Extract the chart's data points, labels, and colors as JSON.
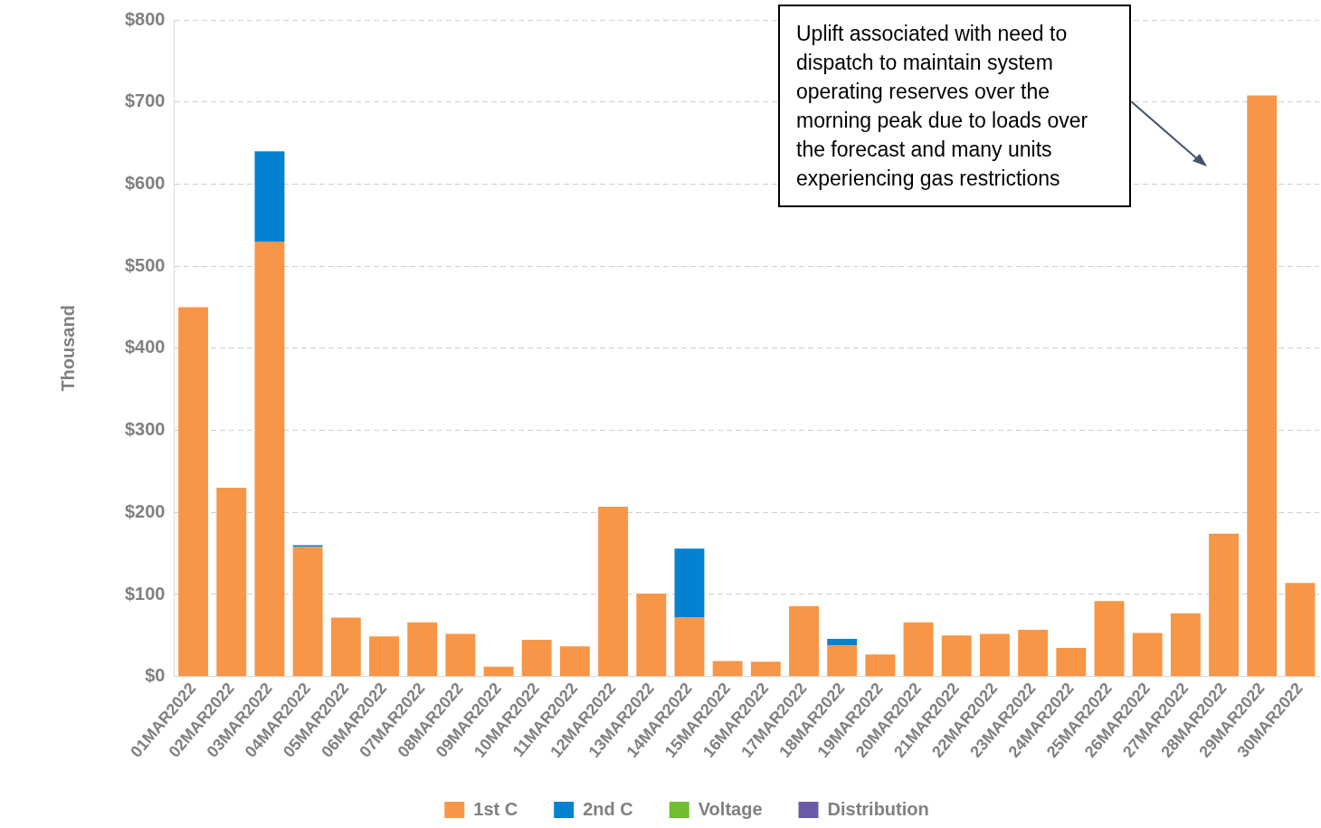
{
  "chart_data": {
    "type": "bar",
    "stacked": true,
    "ylabel": "Thousand",
    "categories": [
      "01MAR2022",
      "02MAR2022",
      "03MAR2022",
      "04MAR2022",
      "05MAR2022",
      "06MAR2022",
      "07MAR2022",
      "08MAR2022",
      "09MAR2022",
      "10MAR2022",
      "11MAR2022",
      "12MAR2022",
      "13MAR2022",
      "14MAR2022",
      "15MAR2022",
      "16MAR2022",
      "17MAR2022",
      "18MAR2022",
      "19MAR2022",
      "20MAR2022",
      "21MAR2022",
      "22MAR2022",
      "23MAR2022",
      "24MAR2022",
      "25MAR2022",
      "26MAR2022",
      "27MAR2022",
      "28MAR2022",
      "29MAR2022",
      "30MAR2022"
    ],
    "series": [
      {
        "name": "1st C",
        "color": "#f79646",
        "values": [
          450,
          230,
          530,
          158,
          72,
          49,
          66,
          52,
          12,
          45,
          37,
          207,
          101,
          72,
          19,
          18,
          86,
          38,
          27,
          66,
          50,
          52,
          57,
          35,
          92,
          53,
          77,
          174,
          708,
          114
        ]
      },
      {
        "name": "2nd C",
        "color": "#0481d1",
        "values": [
          0,
          0,
          110,
          2,
          0,
          0,
          0,
          0,
          0,
          0,
          0,
          0,
          0,
          84,
          0,
          0,
          0,
          8,
          0,
          0,
          0,
          0,
          0,
          0,
          0,
          0,
          0,
          0,
          0,
          0
        ]
      },
      {
        "name": "Voltage",
        "color": "#70bf32",
        "values": [
          0,
          0,
          0,
          0,
          0,
          0,
          0,
          0,
          0,
          0,
          0,
          0,
          0,
          0,
          0,
          0,
          0,
          0,
          0,
          0,
          0,
          0,
          0,
          0,
          0,
          0,
          0,
          0,
          0,
          0
        ]
      },
      {
        "name": "Distribution",
        "color": "#6a5aa8",
        "values": [
          0,
          0,
          0,
          0,
          0,
          0,
          0,
          0,
          0,
          0,
          0,
          0,
          0,
          0,
          0,
          0,
          0,
          0,
          0,
          0,
          0,
          0,
          0,
          0,
          0,
          0,
          0,
          0,
          0,
          0
        ]
      }
    ],
    "ylim": [
      0,
      800
    ],
    "yticks": [
      {
        "value": 0,
        "label": "$0"
      },
      {
        "value": 100,
        "label": "$100"
      },
      {
        "value": 200,
        "label": "$200"
      },
      {
        "value": 300,
        "label": "$300"
      },
      {
        "value": 400,
        "label": "$400"
      },
      {
        "value": 500,
        "label": "$500"
      },
      {
        "value": 600,
        "label": "$600"
      },
      {
        "value": 700,
        "label": "$700"
      },
      {
        "value": 800,
        "label": "$800"
      }
    ],
    "grid": "y",
    "legend": "bottom",
    "annotations": [
      "Uplift associated with need to dispatch to maintain system operating reserves over the morning peak due to loads over the forecast and many units experiencing gas restrictions"
    ]
  }
}
